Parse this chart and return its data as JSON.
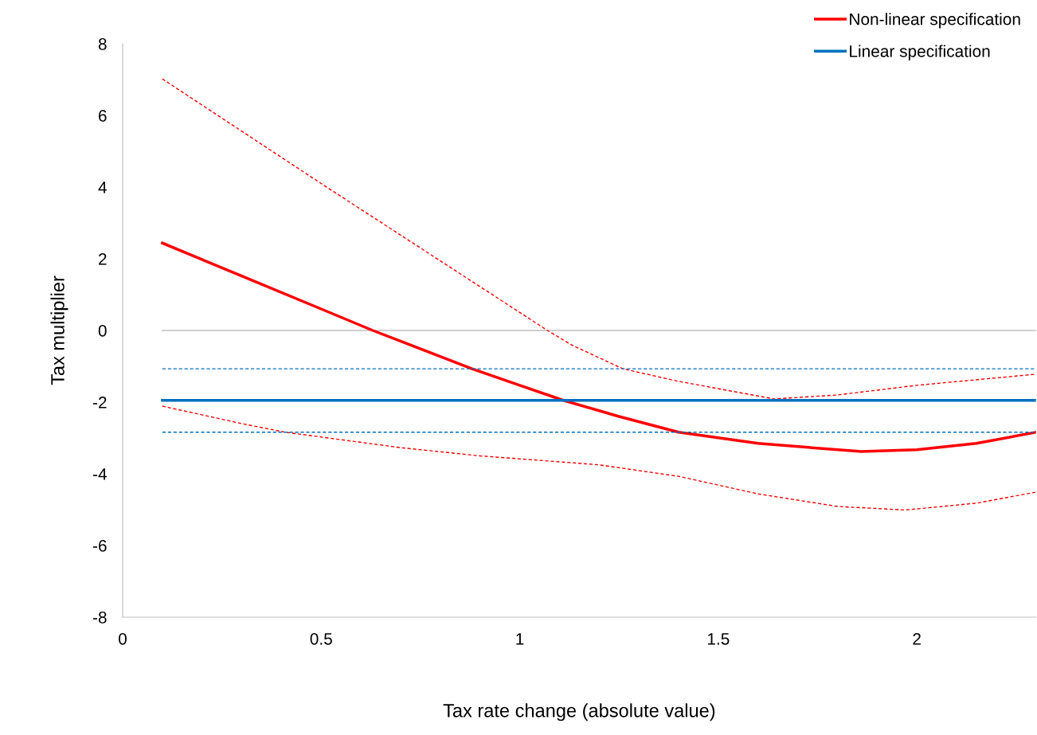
{
  "chart_data": {
    "type": "line",
    "xlabel": "Tax rate change (absolute value)",
    "ylabel": "Tax multiplier",
    "xlim": [
      0,
      2.3
    ],
    "xticks": [
      0,
      0.5,
      1,
      1.5,
      2
    ],
    "ylim": [
      -8,
      8
    ],
    "yticks": [
      -8,
      -6,
      -4,
      -2,
      0,
      2,
      4,
      6,
      8
    ],
    "grid": false,
    "legend": "top right",
    "series": [
      {
        "color": "#bfbfbf",
        "line_style": "solid",
        "x": [
          0.1,
          2.3
        ],
        "values": [
          0,
          0
        ]
      },
      {
        "name": "Non-linear specification",
        "color": "#ff0000",
        "line_style": "solid",
        "x": [
          0.1,
          0.3,
          0.5,
          0.63,
          0.88,
          1.0,
          1.11,
          1.25,
          1.4,
          1.6,
          1.86,
          2.0,
          2.15,
          2.3
        ],
        "values": [
          2.44,
          1.52,
          0.6,
          0,
          -1.07,
          -1.53,
          -1.95,
          -2.4,
          -2.84,
          -3.15,
          -3.38,
          -3.33,
          -3.15,
          -2.84
        ]
      },
      {
        "color": "#ff0000",
        "line_style": "dashed",
        "x": [
          0.1,
          0.5,
          1.07,
          1.13,
          1.26,
          1.4,
          1.64,
          1.8,
          2.0,
          2.3
        ],
        "values": [
          7.02,
          4.1,
          0,
          -0.4,
          -1.07,
          -1.42,
          -1.91,
          -1.8,
          -1.53,
          -1.22
        ]
      },
      {
        "color": "#ff0000",
        "line_style": "dashed",
        "x": [
          0.1,
          0.3,
          0.41,
          0.7,
          0.9,
          1.13,
          1.2,
          1.4,
          1.6,
          1.8,
          1.97,
          2.15,
          2.3
        ],
        "values": [
          -2.11,
          -2.6,
          -2.84,
          -3.27,
          -3.5,
          -3.69,
          -3.75,
          -4.07,
          -4.56,
          -4.91,
          -5.01,
          -4.82,
          -4.51
        ]
      },
      {
        "name": "Linear specification",
        "color": "#0070c0",
        "line_style": "solid",
        "x": [
          0.1,
          2.3
        ],
        "values": [
          -1.95,
          -1.95
        ]
      },
      {
        "color": "#0070c0",
        "line_style": "dashed",
        "x": [
          0.1,
          2.3
        ],
        "values": [
          -1.07,
          -1.07
        ]
      },
      {
        "color": "#0070c0",
        "line_style": "dashed",
        "x": [
          0.1,
          2.3
        ],
        "values": [
          -2.84,
          -2.84
        ]
      }
    ]
  }
}
